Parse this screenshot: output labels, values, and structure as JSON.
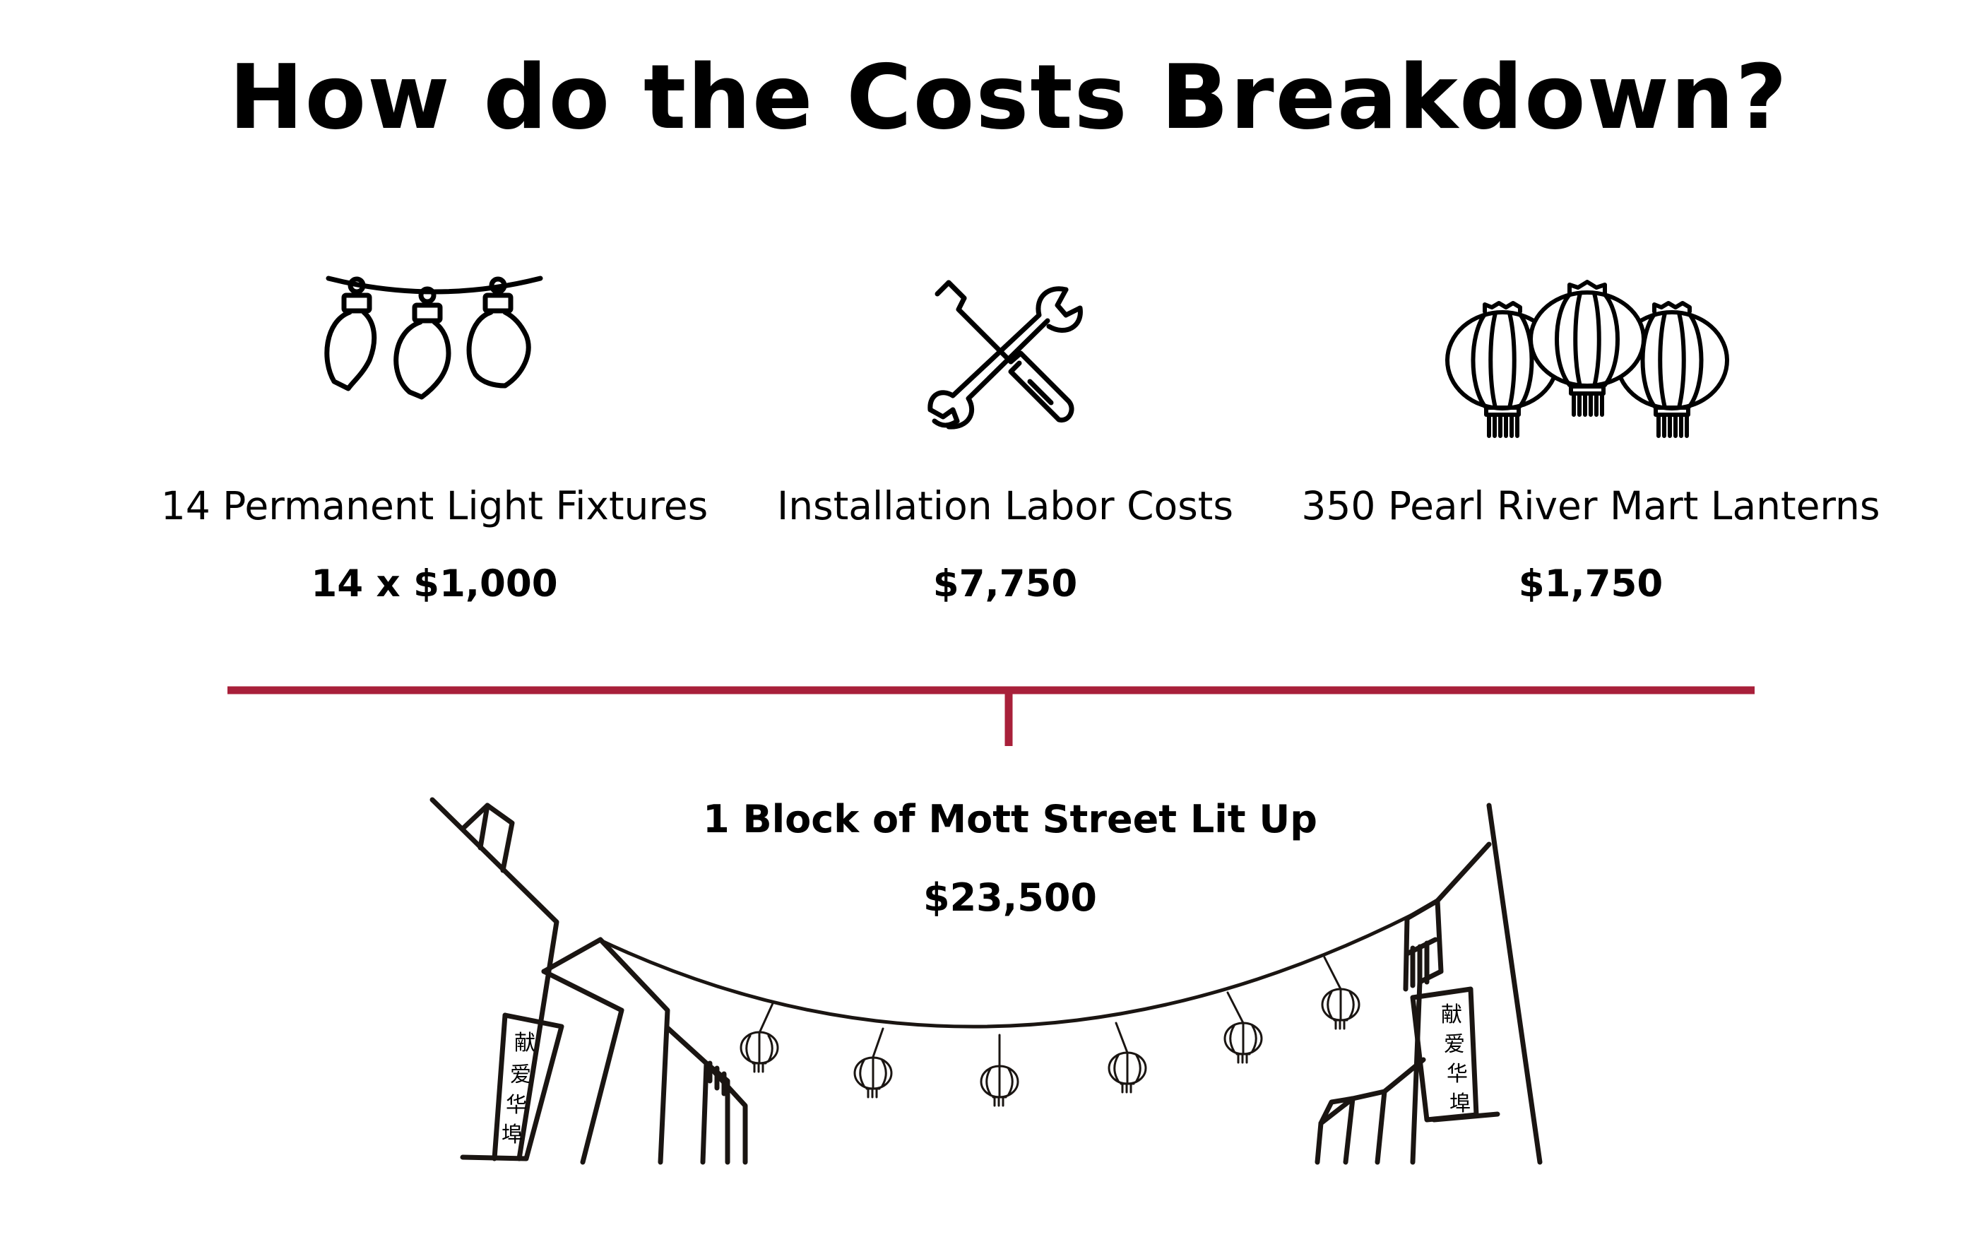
{
  "title": "How do the Costs Breakdown?",
  "items": [
    {
      "icon": "light-bulbs-icon",
      "label": "14 Permanent Light Fixtures",
      "value": "14 x $1,000"
    },
    {
      "icon": "wrench-screwdriver-icon",
      "label": "Installation Labor Costs",
      "value": "$7,750"
    },
    {
      "icon": "lanterns-icon",
      "label": "350 Pearl River Mart Lanterns",
      "value": "$1,750"
    }
  ],
  "total": {
    "label": "1 Block of Mott Street Lit Up",
    "value": "$23,500"
  },
  "signs": {
    "left": [
      "献",
      "爱",
      "华",
      "埠"
    ],
    "right": [
      "献",
      "爱",
      "华",
      "埠"
    ]
  },
  "colors": {
    "connector": "#A8203A",
    "ink": "#1a1512"
  }
}
